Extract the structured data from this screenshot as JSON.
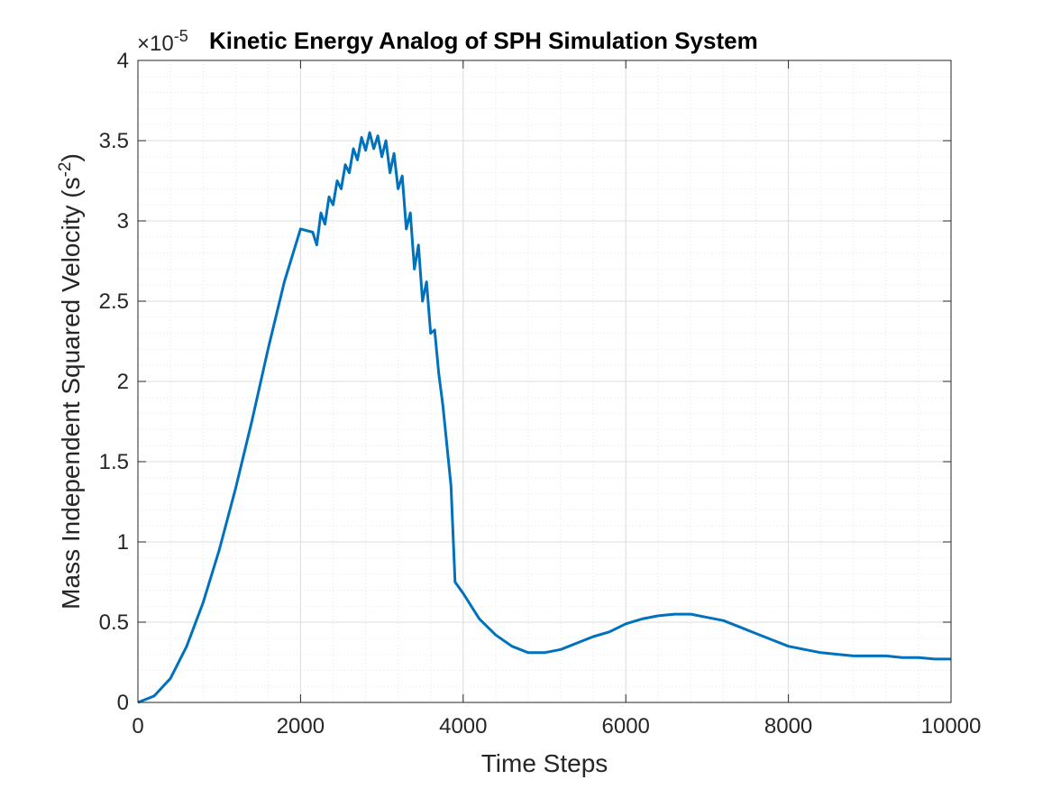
{
  "chart_data": {
    "type": "line",
    "title": "Kinetic Energy Analog of SPH Simulation System",
    "xlabel": "Time Steps",
    "ylabel": "Mass Independent Squared Velocity (s",
    "ylabel_superscript": "-2",
    "ylabel_suffix": ")",
    "y_multiplier": {
      "base": "×10",
      "exponent": "-5"
    },
    "xlim": [
      0,
      10000
    ],
    "ylim": [
      0,
      4
    ],
    "x_tick_labels": [
      "0",
      "2000",
      "4000",
      "6000",
      "8000",
      "10000"
    ],
    "x_ticks": [
      0,
      2000,
      4000,
      6000,
      8000,
      10000
    ],
    "y_tick_labels": [
      "0",
      "0.5",
      "1",
      "1.5",
      "2",
      "2.5",
      "3",
      "3.5",
      "4"
    ],
    "y_ticks": [
      0,
      0.5,
      1,
      1.5,
      2,
      2.5,
      3,
      3.5,
      4
    ],
    "grid": true,
    "minor_grid": true,
    "colors": {
      "line": "#0072BD",
      "axes": "#262626",
      "grid": "#dcdcdc",
      "minor_grid": "#e6e6e6"
    },
    "series": [
      {
        "x": [
          0,
          200,
          400,
          600,
          800,
          1000,
          1200,
          1400,
          1600,
          1800,
          2000,
          2150,
          2200,
          2250,
          2300,
          2350,
          2400,
          2450,
          2500,
          2550,
          2600,
          2650,
          2700,
          2750,
          2800,
          2850,
          2900,
          2950,
          3000,
          3050,
          3100,
          3150,
          3200,
          3250,
          3300,
          3350,
          3400,
          3450,
          3500,
          3550,
          3600,
          3650,
          3700,
          3750,
          3800,
          3850,
          3900,
          4000,
          4200,
          4400,
          4600,
          4800,
          5000,
          5200,
          5400,
          5600,
          5800,
          6000,
          6200,
          6400,
          6600,
          6800,
          7000,
          7200,
          7400,
          7600,
          7800,
          8000,
          8200,
          8400,
          8600,
          8800,
          9000,
          9200,
          9400,
          9600,
          9800,
          10000
        ],
        "y": [
          0,
          0.04,
          0.15,
          0.35,
          0.62,
          0.95,
          1.33,
          1.75,
          2.2,
          2.62,
          2.95,
          2.93,
          2.85,
          3.05,
          2.98,
          3.15,
          3.1,
          3.25,
          3.2,
          3.35,
          3.3,
          3.45,
          3.38,
          3.52,
          3.44,
          3.55,
          3.45,
          3.53,
          3.4,
          3.5,
          3.3,
          3.42,
          3.2,
          3.28,
          2.95,
          3.05,
          2.7,
          2.85,
          2.5,
          2.62,
          2.3,
          2.32,
          2.05,
          1.85,
          1.6,
          1.35,
          0.75,
          0.68,
          0.52,
          0.42,
          0.35,
          0.31,
          0.31,
          0.33,
          0.37,
          0.41,
          0.44,
          0.49,
          0.52,
          0.54,
          0.55,
          0.55,
          0.53,
          0.51,
          0.47,
          0.43,
          0.39,
          0.35,
          0.33,
          0.31,
          0.3,
          0.29,
          0.29,
          0.29,
          0.28,
          0.28,
          0.27,
          0.27
        ]
      }
    ]
  }
}
